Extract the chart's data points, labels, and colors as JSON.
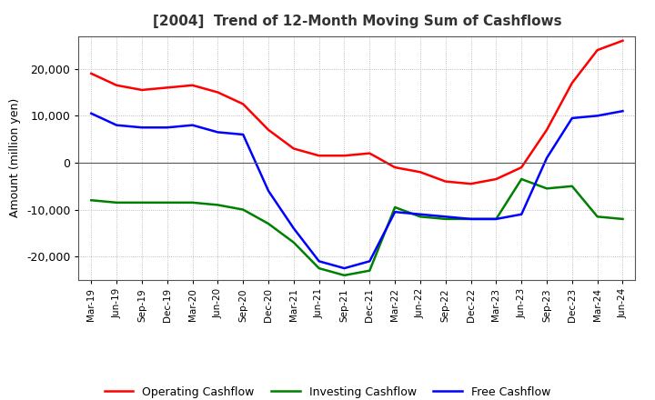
{
  "title": "[2004]  Trend of 12-Month Moving Sum of Cashflows",
  "ylabel": "Amount (million yen)",
  "ylim": [
    -25000,
    27000
  ],
  "yticks": [
    -20000,
    -10000,
    0,
    10000,
    20000
  ],
  "background_color": "#ffffff",
  "grid_color": "#aaaaaa",
  "x_labels": [
    "Mar-19",
    "Jun-19",
    "Sep-19",
    "Dec-19",
    "Mar-20",
    "Jun-20",
    "Sep-20",
    "Dec-20",
    "Mar-21",
    "Jun-21",
    "Sep-21",
    "Dec-21",
    "Mar-22",
    "Jun-22",
    "Sep-22",
    "Dec-22",
    "Mar-23",
    "Jun-23",
    "Sep-23",
    "Dec-23",
    "Mar-24",
    "Jun-24"
  ],
  "operating": [
    19000,
    16500,
    15500,
    16000,
    16500,
    15000,
    12500,
    7000,
    3000,
    1500,
    1500,
    2000,
    -1000,
    -2000,
    -4000,
    -4500,
    -3500,
    -1000,
    7000,
    17000,
    24000,
    26000
  ],
  "investing": [
    -8000,
    -8500,
    -8500,
    -8500,
    -8500,
    -9000,
    -10000,
    -13000,
    -17000,
    -22500,
    -24000,
    -23000,
    -9500,
    -11500,
    -12000,
    -12000,
    -12000,
    -3500,
    -5500,
    -5000,
    -11500,
    -12000
  ],
  "free": [
    10500,
    8000,
    7500,
    7500,
    8000,
    6500,
    6000,
    -6000,
    -14000,
    -21000,
    -22500,
    -21000,
    -10500,
    -11000,
    -11500,
    -12000,
    -12000,
    -11000,
    1000,
    9500,
    10000,
    11000
  ],
  "op_color": "#ff0000",
  "inv_color": "#008000",
  "free_color": "#0000ff",
  "line_width": 1.8,
  "legend_labels": [
    "Operating Cashflow",
    "Investing Cashflow",
    "Free Cashflow"
  ]
}
